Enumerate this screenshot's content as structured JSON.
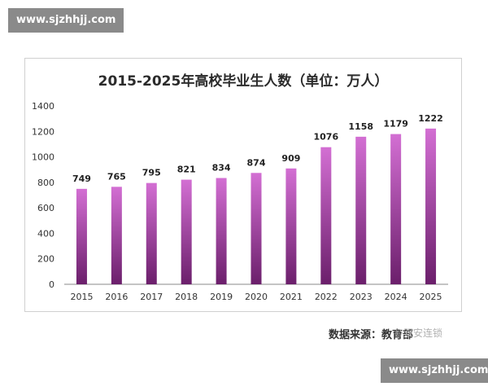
{
  "watermarks": {
    "top": "www.sjzhhjj.com",
    "bottom": "www.sjzhhjj.com"
  },
  "colors": {
    "bar_light": "#d36fd3",
    "bar_dark": "#6b1f6b",
    "axis": "#888888",
    "frame": "#d0d0d0"
  },
  "chart_data": {
    "type": "bar",
    "title": "2015-2025年高校毕业生人数（单位：万人）",
    "xlabel": "",
    "ylabel": "",
    "categories": [
      "2015",
      "2016",
      "2017",
      "2018",
      "2019",
      "2020",
      "2021",
      "2022",
      "2023",
      "2024",
      "2025"
    ],
    "values": [
      749,
      765,
      795,
      821,
      834,
      874,
      909,
      1076,
      1158,
      1179,
      1222
    ],
    "ylim": [
      0,
      1400
    ],
    "yticks": [
      0,
      200,
      400,
      600,
      800,
      1000,
      1200,
      1400
    ],
    "grid": false,
    "legend": "none"
  },
  "source": {
    "text": "数据来源：教育部",
    "overlay": "©双安连锁"
  }
}
